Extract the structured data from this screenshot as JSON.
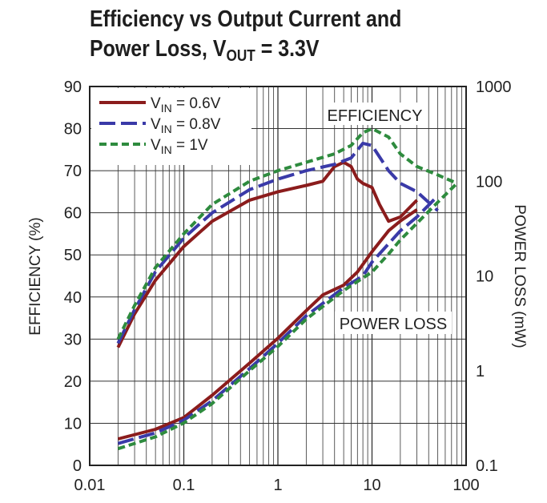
{
  "title": {
    "line1": "Efficiency vs Output Current and",
    "line2_prefix": "Power Loss, V",
    "line2_sub": "OUT",
    "line2_suffix": " = 3.3V"
  },
  "chart_data": {
    "type": "line",
    "x_axis": {
      "scale": "log",
      "range": [
        0.01,
        100
      ],
      "tick_labels": [
        "0.01",
        "0.1",
        "1",
        "10",
        "100"
      ]
    },
    "y_left": {
      "label": "EFFICIENCY (%)",
      "range": [
        0,
        90
      ],
      "tick_labels": [
        "0",
        "10",
        "20",
        "30",
        "40",
        "50",
        "60",
        "70",
        "80",
        "90"
      ]
    },
    "y_right": {
      "label": "POWER LOSS (mW)",
      "scale": "log",
      "range": [
        0.1,
        1000
      ],
      "tick_labels": [
        "0.1",
        "1",
        "10",
        "100",
        "1000"
      ]
    },
    "grid": true,
    "legend_position": "top-left",
    "annotations": [
      "EFFICIENCY",
      "POWER LOSS"
    ],
    "colors": {
      "vin_0_6": "#8b1c1c",
      "vin_0_8": "#3a3aa8",
      "vin_1": "#2e8b3e"
    },
    "series": [
      {
        "name_prefix": "V",
        "name_sub": "IN",
        "name_suffix": " = 0.6V",
        "dash": "solid",
        "color_key": "vin_0_6",
        "efficiency": [
          [
            0.02,
            28
          ],
          [
            0.03,
            36
          ],
          [
            0.05,
            44
          ],
          [
            0.1,
            52
          ],
          [
            0.2,
            58
          ],
          [
            0.5,
            63
          ],
          [
            1,
            65
          ],
          [
            2,
            66.5
          ],
          [
            3,
            67.5
          ],
          [
            4,
            71
          ],
          [
            5,
            72
          ],
          [
            6,
            71
          ],
          [
            7,
            68
          ],
          [
            8,
            67
          ],
          [
            10,
            66
          ],
          [
            12,
            62
          ],
          [
            15,
            58
          ],
          [
            20,
            59
          ],
          [
            30,
            63
          ]
        ],
        "power_loss": [
          [
            0.02,
            0.19
          ],
          [
            0.05,
            0.24
          ],
          [
            0.1,
            0.32
          ],
          [
            0.2,
            0.55
          ],
          [
            0.5,
            1.2
          ],
          [
            1,
            2.2
          ],
          [
            2,
            4.3
          ],
          [
            3,
            6.3
          ],
          [
            5,
            8
          ],
          [
            7,
            11
          ],
          [
            10,
            18
          ],
          [
            15,
            30
          ],
          [
            20,
            38
          ],
          [
            30,
            50
          ]
        ]
      },
      {
        "name_prefix": "V",
        "name_sub": "IN",
        "name_suffix": " = 0.8V",
        "dash": "long",
        "color_key": "vin_0_8",
        "efficiency": [
          [
            0.02,
            29
          ],
          [
            0.03,
            37
          ],
          [
            0.05,
            46
          ],
          [
            0.1,
            54
          ],
          [
            0.2,
            60
          ],
          [
            0.5,
            65.5
          ],
          [
            1,
            68
          ],
          [
            2,
            70
          ],
          [
            4,
            71.5
          ],
          [
            6,
            73
          ],
          [
            8,
            76.5
          ],
          [
            10,
            76
          ],
          [
            15,
            70
          ],
          [
            20,
            67
          ],
          [
            30,
            65
          ],
          [
            50,
            60.5
          ]
        ],
        "power_loss": [
          [
            0.02,
            0.17
          ],
          [
            0.05,
            0.22
          ],
          [
            0.1,
            0.3
          ],
          [
            0.2,
            0.48
          ],
          [
            0.5,
            1.05
          ],
          [
            1,
            1.95
          ],
          [
            2,
            3.8
          ],
          [
            5,
            7.5
          ],
          [
            8,
            10
          ],
          [
            10,
            14
          ],
          [
            20,
            30
          ],
          [
            30,
            42
          ],
          [
            50,
            70
          ]
        ]
      },
      {
        "name_prefix": "V",
        "name_sub": "IN",
        "name_suffix": " = 1V",
        "dash": "short",
        "color_key": "vin_1",
        "efficiency": [
          [
            0.02,
            30
          ],
          [
            0.03,
            38
          ],
          [
            0.05,
            47
          ],
          [
            0.1,
            55
          ],
          [
            0.2,
            62
          ],
          [
            0.5,
            67.5
          ],
          [
            1,
            70
          ],
          [
            2,
            72
          ],
          [
            4,
            74
          ],
          [
            6,
            76
          ],
          [
            8,
            79
          ],
          [
            10,
            80
          ],
          [
            15,
            78
          ],
          [
            20,
            74
          ],
          [
            30,
            71
          ],
          [
            50,
            69
          ],
          [
            80,
            67
          ]
        ],
        "power_loss": [
          [
            0.02,
            0.15
          ],
          [
            0.05,
            0.2
          ],
          [
            0.1,
            0.28
          ],
          [
            0.2,
            0.45
          ],
          [
            0.5,
            1.0
          ],
          [
            1,
            1.8
          ],
          [
            2,
            3.5
          ],
          [
            5,
            7
          ],
          [
            10,
            11
          ],
          [
            15,
            17
          ],
          [
            20,
            24
          ],
          [
            30,
            36
          ],
          [
            50,
            60
          ],
          [
            80,
            95
          ]
        ]
      }
    ]
  }
}
